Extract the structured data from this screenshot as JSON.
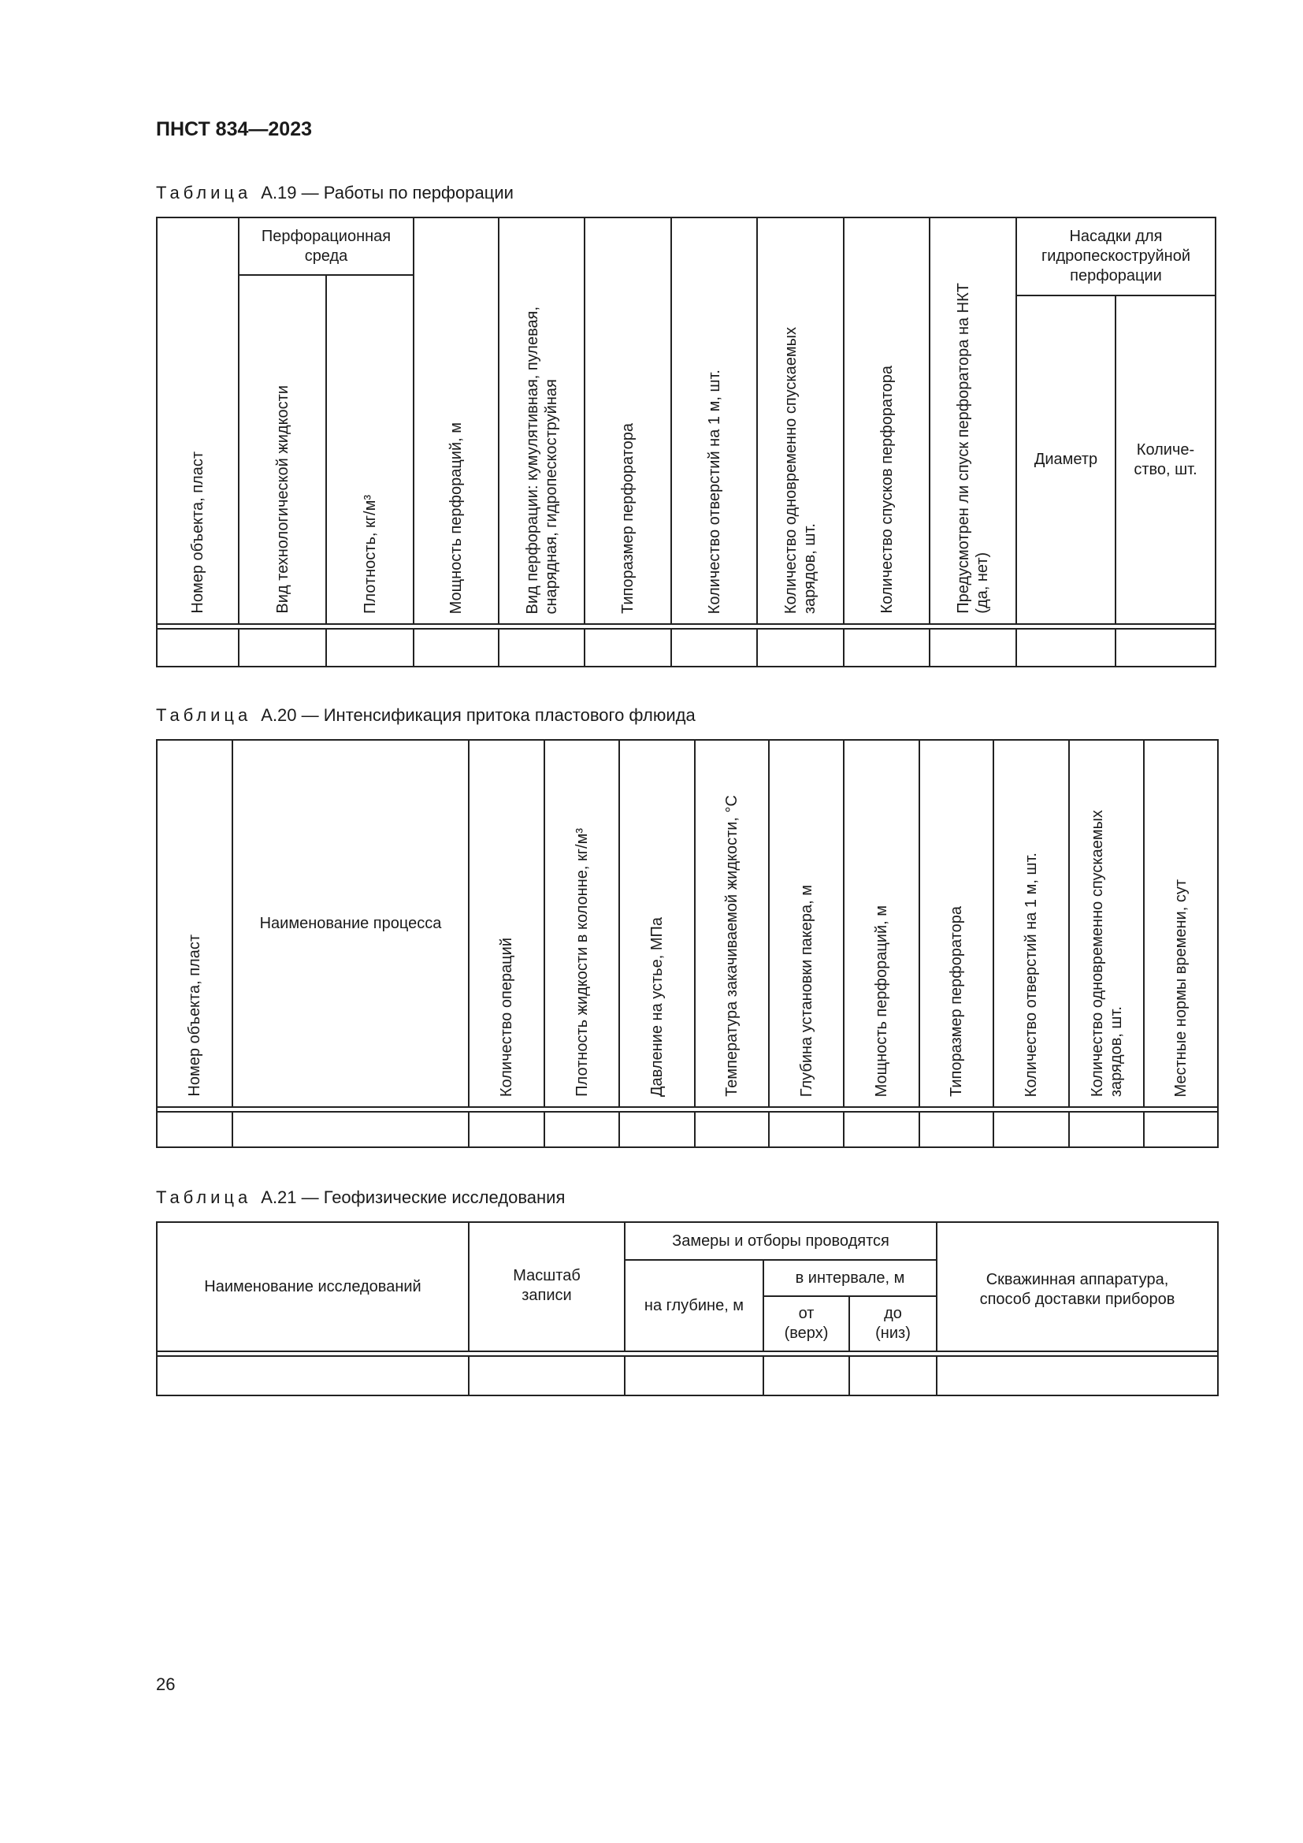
{
  "header": {
    "doc_id": "ПНСТ 834—2023"
  },
  "page_number": "26",
  "table_a19": {
    "caption_label": "Таблица",
    "caption_title": "А.19 — Работы по перфорации",
    "col_object": "Номер объекта, пласт",
    "group_medium": "Перфорационная\nсреда",
    "col_fluid_type": "Вид технологической жидкости",
    "col_density": "Плотность, кг/м³",
    "col_thickness": "Мощность перфораций, м",
    "col_perf_type": "Вид перфорации: кумулятивная, пулевая,\nснарядная, гидропескоструйная",
    "col_perforator_size": "Типоразмер перфоратора",
    "col_holes": "Количество отверстий на 1 м, шт.",
    "col_charges": "Количество одновременно спускаемых\nзарядов, шт.",
    "col_runs": "Количество спусков перфоратора",
    "col_tubing": "Предусмотрен ли спуск перфоратора на НКТ\n(да, нет)",
    "group_nozzles": "Насадки для\nгидропескоструйной\nперфорации",
    "col_diameter": "Диаметр",
    "col_count": "Количе-\nство, шт."
  },
  "table_a20": {
    "caption_label": "Таблица",
    "caption_title": "А.20 — Интенсификация притока пластового флюида",
    "columns": [
      "Номер объекта, пласт",
      "Наименование процесса",
      "Количество операций",
      "Плотность жидкости в колонне, кг/м³",
      "Давление на устье, МПа",
      "Температура закачиваемой жидкости, °С",
      "Глубина установки пакера, м",
      "Мощность перфораций, м",
      "Типоразмер перфоратора",
      "Количество отверстий на 1 м, шт.",
      "Количество одновременно спускаемых\nзарядов, шт.",
      "Местные нормы времени, сут"
    ]
  },
  "table_a21": {
    "caption_label": "Таблица",
    "caption_title": "А.21 — Геофизические исследования",
    "col_name": "Наименование исследований",
    "col_scale": "Масштаб\nзаписи",
    "group_measurements": "Замеры и отборы проводятся",
    "col_depth": "на глубине, м",
    "group_interval": "в интервале, м",
    "col_from": "от\n(верх)",
    "col_to": "до\n(низ)",
    "col_equipment": "Скважинная аппаратура,\nспособ доставки приборов"
  }
}
